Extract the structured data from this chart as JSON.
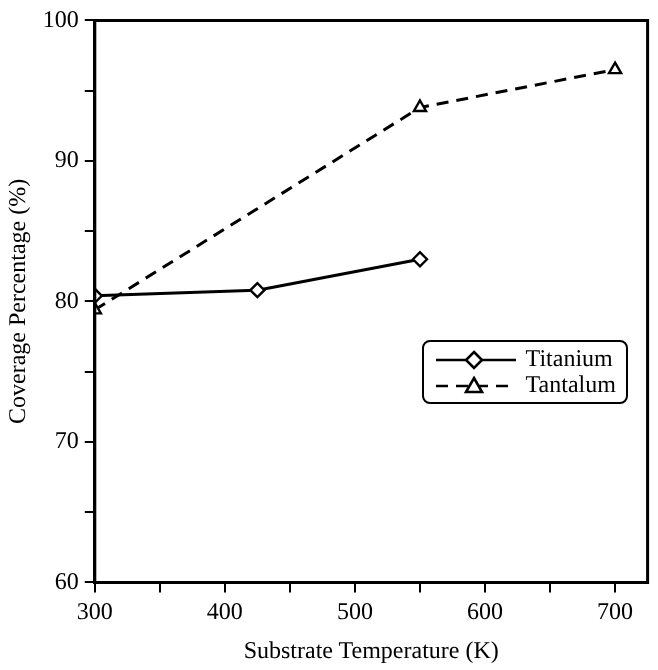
{
  "chart_data": {
    "type": "line",
    "xlabel": "Substrate Temperature (K)",
    "ylabel": "Coverage Percentage (%)",
    "xlim": [
      300,
      725
    ],
    "xticks": [
      300,
      {
        "value": 350,
        "label": null
      },
      400,
      {
        "value": 450,
        "label": null
      },
      500,
      {
        "value": 550,
        "label": null
      },
      600,
      {
        "value": 650,
        "label": null
      },
      700
    ],
    "ylim": [
      60,
      100
    ],
    "yticks": [
      60,
      {
        "value": 65,
        "label": null
      },
      70,
      {
        "value": 75,
        "label": null
      },
      80,
      {
        "value": 85,
        "label": null
      },
      90,
      {
        "value": 95,
        "label": null
      },
      100
    ],
    "grid": false,
    "legend": "right",
    "series": [
      {
        "name": "Titanium",
        "color": "#000000",
        "x": [
          300,
          425,
          550
        ],
        "values": [
          80.4,
          80.8,
          83.0
        ],
        "marker": "diamond",
        "line_style": "solid"
      },
      {
        "name": "Tantalum",
        "color": "#000000",
        "x": [
          300,
          550,
          700
        ],
        "values": [
          79.4,
          93.8,
          96.5
        ],
        "marker": "triangle",
        "line_style": "dashed"
      }
    ]
  }
}
